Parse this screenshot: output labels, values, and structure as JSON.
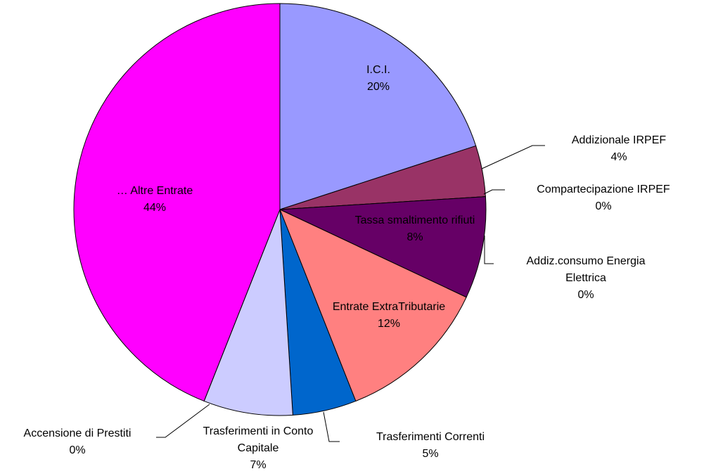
{
  "chart_data": {
    "type": "pie",
    "categories": [
      "I.C.I.",
      "Addizionale IRPEF",
      "Compartecipazione IRPEF",
      "Tassa smaltimento rifiuti",
      "Addiz.consumo Energia Elettrica",
      "Entrate ExtraTributarie",
      "Trasferimenti Correnti",
      "Trasferimenti in Conto Capitale",
      "Accensione di Prestiti",
      "… Altre Entrate"
    ],
    "values": [
      20,
      4,
      0,
      8,
      0,
      12,
      5,
      7,
      0,
      44
    ],
    "value_labels": [
      "20%",
      "4%",
      "0%",
      "8%",
      "0%",
      "12%",
      "5%",
      "7%",
      "0%",
      "44%"
    ],
    "colors": [
      "#9999ff",
      "#993366",
      "#ffffcc",
      "#660066",
      "#ccffff",
      "#ff8080",
      "#0066cc",
      "#ccccff",
      "#000080",
      "#ff00ff"
    ]
  }
}
